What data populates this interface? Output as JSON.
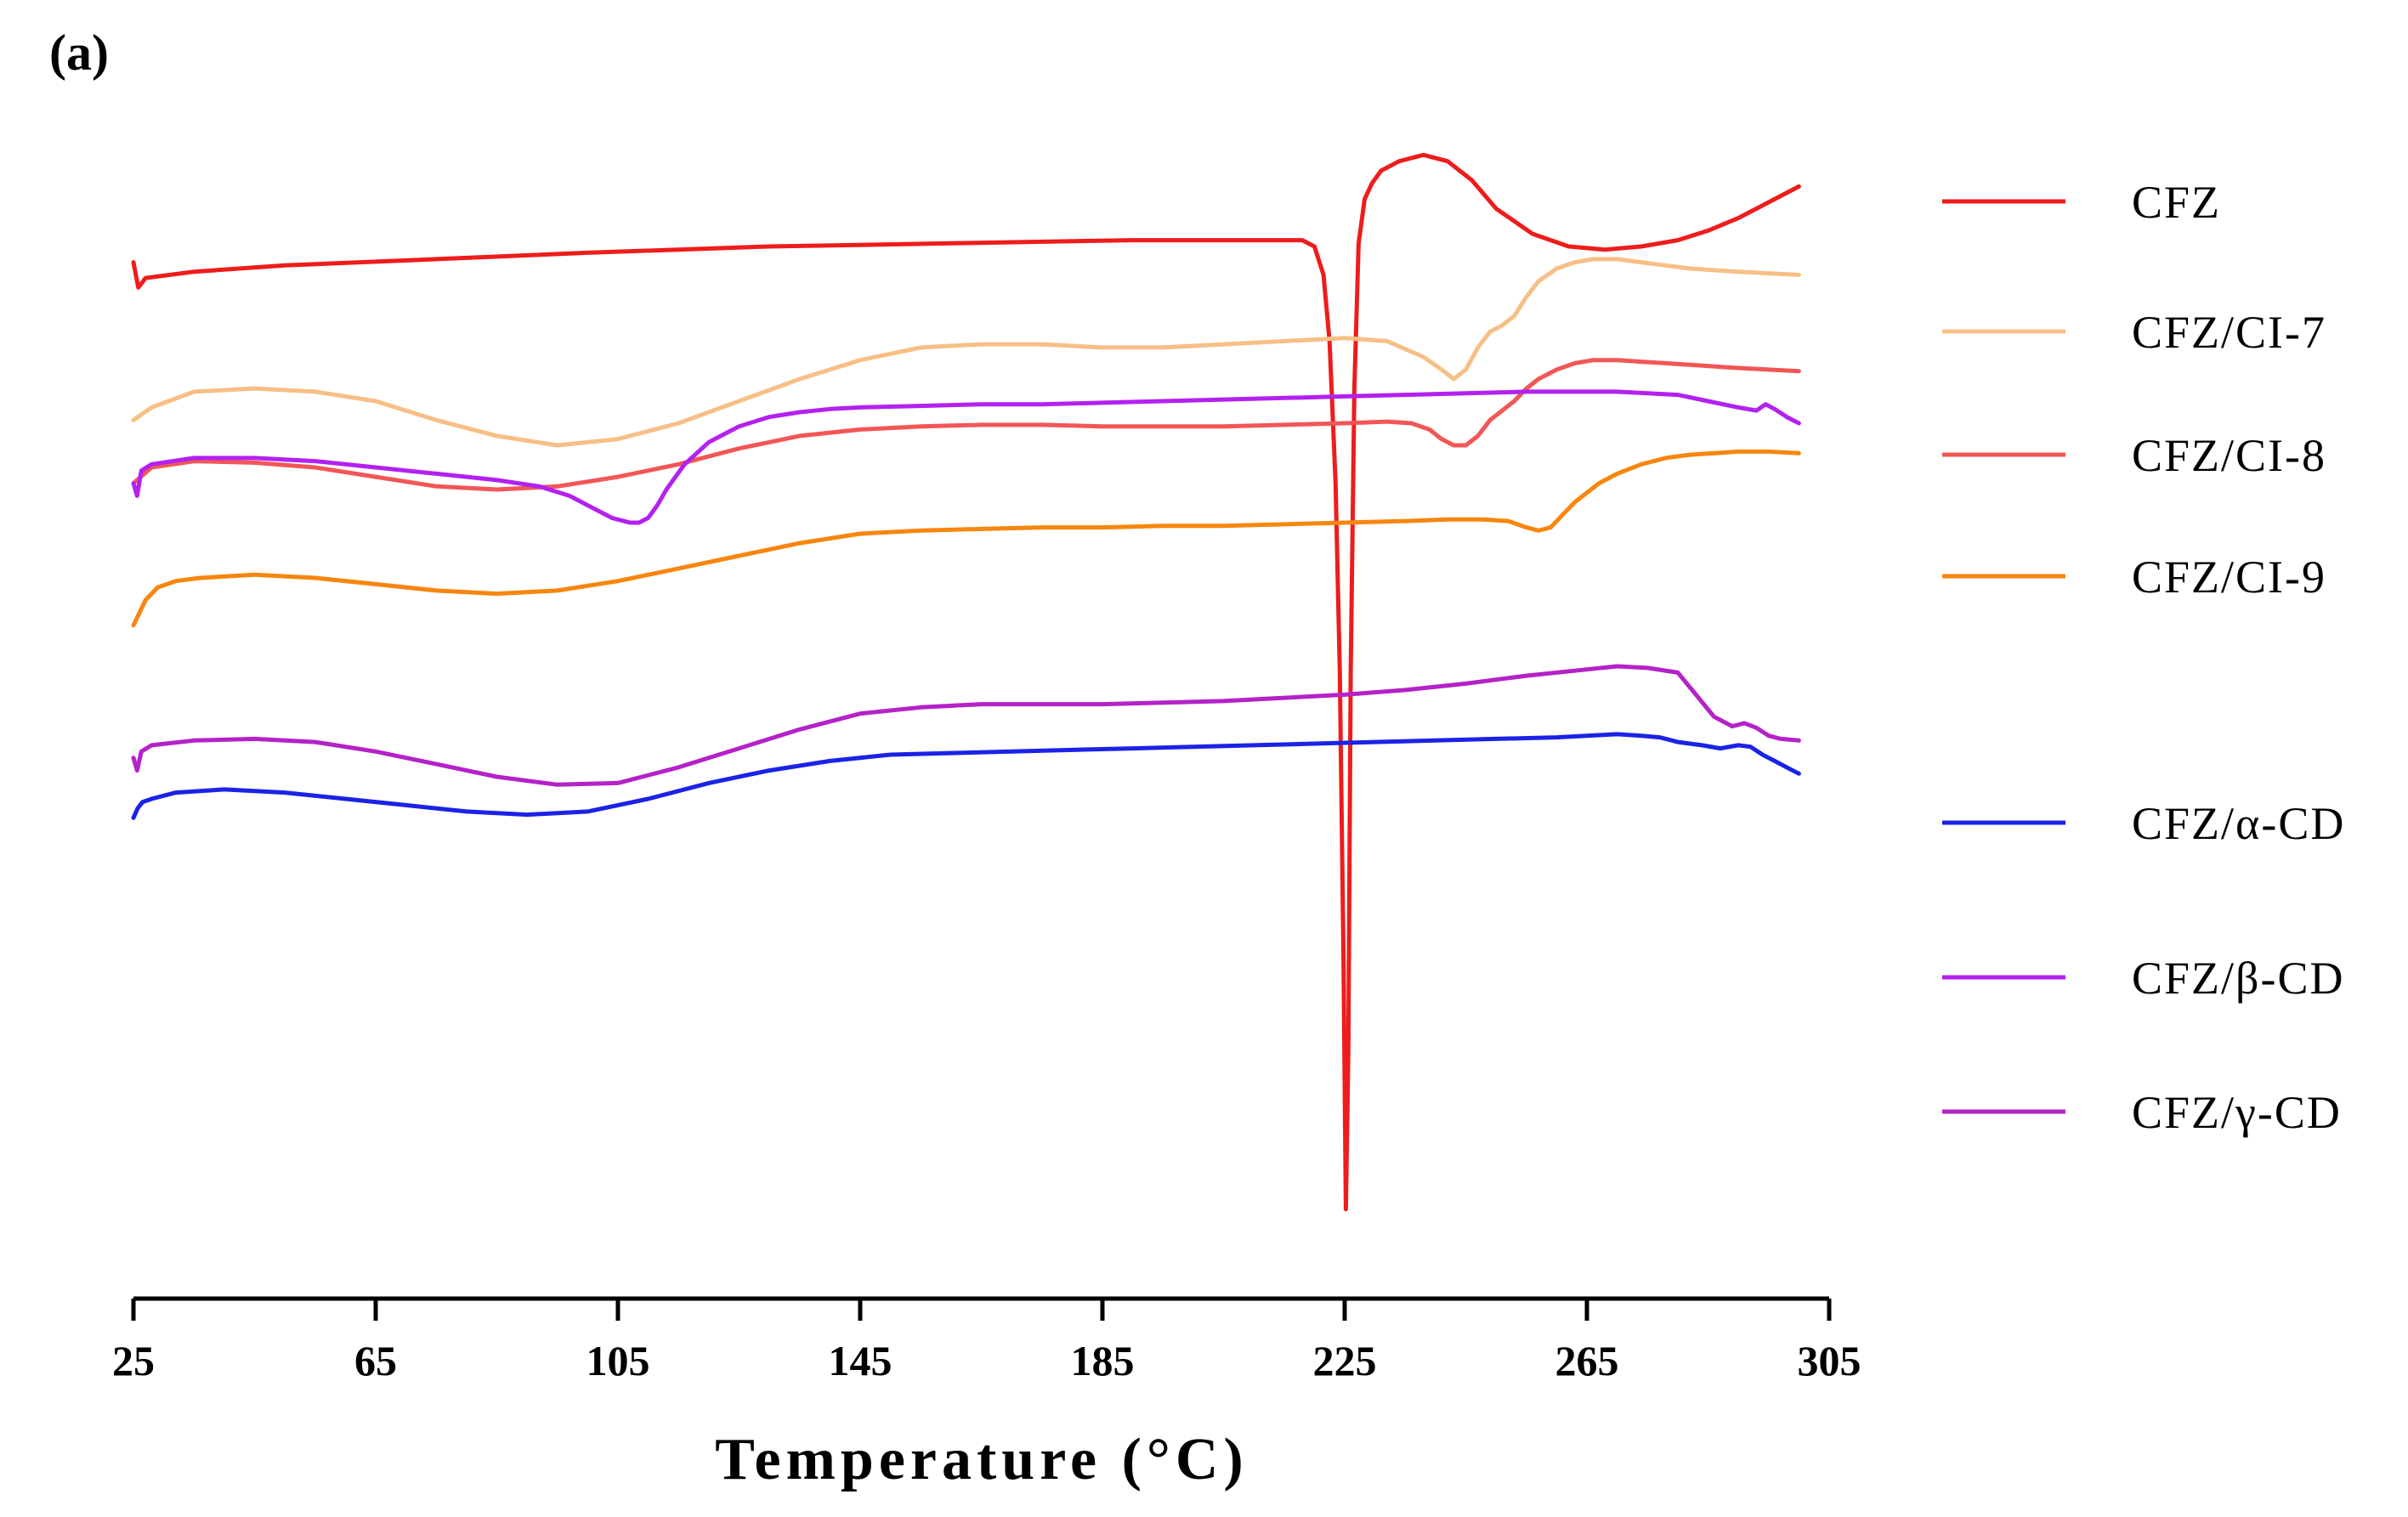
{
  "panel_label": "(a)",
  "chart_data": {
    "type": "line",
    "title": "",
    "xlabel": "Temperature (°C)",
    "ylabel": "",
    "xlim": [
      25,
      305
    ],
    "xticks": [
      25,
      65,
      105,
      145,
      185,
      225,
      265,
      305
    ],
    "grid": false,
    "legend_position": "right",
    "series": [
      {
        "name": "CFZ",
        "color": "#ee1c1c",
        "x": [
          25,
          25.8,
          27,
          35,
          50,
          75,
          100,
          130,
          160,
          190,
          205,
          212,
          218,
          220,
          221.5,
          222.5,
          223.5,
          224.2,
          224.8,
          225.2,
          225.6,
          226,
          226.6,
          227.3,
          228.3,
          229.5,
          231,
          234,
          238,
          242,
          246,
          250,
          256,
          262,
          268,
          274,
          280,
          285,
          290,
          295,
          300
        ],
        "y": [
          98,
          97.2,
          97.5,
          97.7,
          97.9,
          98.1,
          98.3,
          98.5,
          98.6,
          98.7,
          98.7,
          98.7,
          98.7,
          98.5,
          97.6,
          95.5,
          91,
          85,
          76,
          68,
          73,
          85,
          94,
          98.6,
          100,
          100.5,
          100.9,
          101.2,
          101.4,
          101.2,
          100.6,
          99.7,
          98.9,
          98.5,
          98.4,
          98.5,
          98.7,
          99,
          99.4,
          99.9,
          100.4
        ]
      },
      {
        "name": "CFZ/CI-7",
        "color": "#f7bf86",
        "x": [
          25,
          28,
          35,
          45,
          55,
          65,
          75,
          85,
          95,
          105,
          115,
          125,
          135,
          145,
          155,
          165,
          175,
          185,
          195,
          205,
          215,
          225,
          232,
          238,
          241,
          243,
          245,
          247,
          249,
          251,
          253,
          255,
          257,
          260,
          263,
          266,
          270,
          274,
          278,
          282,
          286,
          290,
          295,
          300
        ],
        "y": [
          93,
          93.4,
          93.9,
          94,
          93.9,
          93.6,
          93,
          92.5,
          92.2,
          92.4,
          92.9,
          93.6,
          94.3,
          94.9,
          95.3,
          95.4,
          95.4,
          95.3,
          95.3,
          95.4,
          95.5,
          95.6,
          95.5,
          95,
          94.6,
          94.3,
          94.6,
          95.3,
          95.8,
          96,
          96.3,
          96.9,
          97.4,
          97.8,
          98,
          98.1,
          98.1,
          98,
          97.9,
          97.8,
          97.75,
          97.7,
          97.65,
          97.6
        ]
      },
      {
        "name": "CFZ/CI-8",
        "color": "#f25656",
        "x": [
          25,
          28,
          35,
          45,
          55,
          65,
          75,
          85,
          95,
          105,
          115,
          125,
          135,
          145,
          155,
          165,
          175,
          185,
          195,
          205,
          215,
          225,
          232,
          236,
          239,
          241,
          243,
          245,
          247,
          249,
          251,
          253,
          255,
          257,
          260,
          263,
          266,
          270,
          274,
          278,
          282,
          286,
          290,
          295,
          300
        ],
        "y": [
          91,
          91.5,
          91.7,
          91.65,
          91.5,
          91.2,
          90.9,
          90.8,
          90.9,
          91.2,
          91.6,
          92.1,
          92.5,
          92.7,
          92.8,
          92.85,
          92.85,
          92.8,
          92.8,
          92.8,
          92.85,
          92.9,
          92.95,
          92.9,
          92.7,
          92.4,
          92.2,
          92.2,
          92.5,
          93,
          93.3,
          93.6,
          94,
          94.3,
          94.6,
          94.8,
          94.9,
          94.9,
          94.85,
          94.8,
          94.75,
          94.7,
          94.65,
          94.6,
          94.55
        ]
      },
      {
        "name": "CFZ/CI-9",
        "color": "#f7860e",
        "x": [
          25,
          27,
          29,
          32,
          36,
          45,
          55,
          65,
          75,
          85,
          95,
          105,
          115,
          125,
          135,
          145,
          155,
          165,
          175,
          185,
          195,
          205,
          215,
          225,
          235,
          242,
          248,
          252,
          255,
          257,
          259,
          261,
          263,
          265,
          267,
          270,
          274,
          278,
          282,
          286,
          290,
          295,
          300
        ],
        "y": [
          86.5,
          87.3,
          87.7,
          87.9,
          88,
          88.1,
          88,
          87.8,
          87.6,
          87.5,
          87.6,
          87.9,
          88.3,
          88.7,
          89.1,
          89.4,
          89.5,
          89.55,
          89.6,
          89.6,
          89.65,
          89.65,
          89.7,
          89.75,
          89.8,
          89.85,
          89.85,
          89.8,
          89.6,
          89.5,
          89.6,
          90,
          90.4,
          90.7,
          91,
          91.3,
          91.6,
          91.8,
          91.9,
          91.95,
          92,
          92,
          91.95
        ]
      },
      {
        "name": "CFZ/α-CD",
        "color": "#1a23e6",
        "x": [
          25,
          25.7,
          26.5,
          28,
          32,
          40,
          50,
          60,
          70,
          80,
          90,
          100,
          110,
          120,
          130,
          140,
          150,
          160,
          170,
          180,
          190,
          200,
          210,
          220,
          230,
          240,
          250,
          260,
          265,
          270,
          274,
          277,
          280,
          282,
          284,
          287,
          290,
          292,
          294,
          296,
          298,
          300
        ],
        "y": [
          80.4,
          80.7,
          80.9,
          81,
          81.2,
          81.3,
          81.2,
          81,
          80.8,
          80.6,
          80.5,
          80.6,
          81,
          81.5,
          81.9,
          82.2,
          82.4,
          82.45,
          82.5,
          82.55,
          82.6,
          82.65,
          82.7,
          82.75,
          82.8,
          82.85,
          82.9,
          82.95,
          83,
          83.05,
          83,
          82.95,
          82.8,
          82.75,
          82.7,
          82.6,
          82.7,
          82.65,
          82.4,
          82.2,
          82,
          81.8
        ]
      },
      {
        "name": "CFZ/β-CD",
        "color": "#b321f0",
        "x": [
          25,
          25.6,
          26.3,
          28,
          35,
          45,
          55,
          65,
          75,
          85,
          92,
          97,
          101,
          104,
          107,
          108.5,
          110,
          111.5,
          113,
          116,
          120,
          125,
          130,
          135,
          140,
          145,
          155,
          165,
          175,
          185,
          195,
          205,
          215,
          225,
          235,
          245,
          255,
          265,
          270,
          275,
          280,
          285,
          290,
          293,
          294.5,
          296,
          298,
          300
        ],
        "y": [
          91.0,
          90.6,
          91.4,
          91.6,
          91.8,
          91.8,
          91.7,
          91.5,
          91.3,
          91.1,
          90.9,
          90.6,
          90.2,
          89.9,
          89.75,
          89.75,
          89.9,
          90.3,
          90.8,
          91.6,
          92.3,
          92.8,
          93.1,
          93.25,
          93.35,
          93.4,
          93.45,
          93.5,
          93.5,
          93.55,
          93.6,
          93.65,
          93.7,
          93.75,
          93.8,
          93.85,
          93.9,
          93.9,
          93.9,
          93.85,
          93.8,
          93.6,
          93.4,
          93.3,
          93.5,
          93.35,
          93.1,
          92.9
        ]
      },
      {
        "name": "CFZ/γ-CD",
        "color": "#b422c8",
        "x": [
          25,
          25.6,
          26.3,
          28,
          35,
          45,
          55,
          65,
          75,
          85,
          95,
          105,
          115,
          125,
          135,
          145,
          155,
          165,
          175,
          185,
          195,
          205,
          215,
          225,
          235,
          245,
          255,
          265,
          270,
          275,
          280,
          283,
          286,
          289,
          291,
          293,
          295,
          297,
          300
        ],
        "y": [
          82.3,
          81.9,
          82.5,
          82.7,
          82.85,
          82.9,
          82.8,
          82.5,
          82.1,
          81.7,
          81.45,
          81.5,
          82,
          82.6,
          83.2,
          83.7,
          83.9,
          84,
          84,
          84,
          84.05,
          84.1,
          84.2,
          84.3,
          84.45,
          84.65,
          84.9,
          85.1,
          85.2,
          85.15,
          85.0,
          84.3,
          83.6,
          83.3,
          83.4,
          83.25,
          83.0,
          82.9,
          82.85
        ]
      }
    ]
  }
}
